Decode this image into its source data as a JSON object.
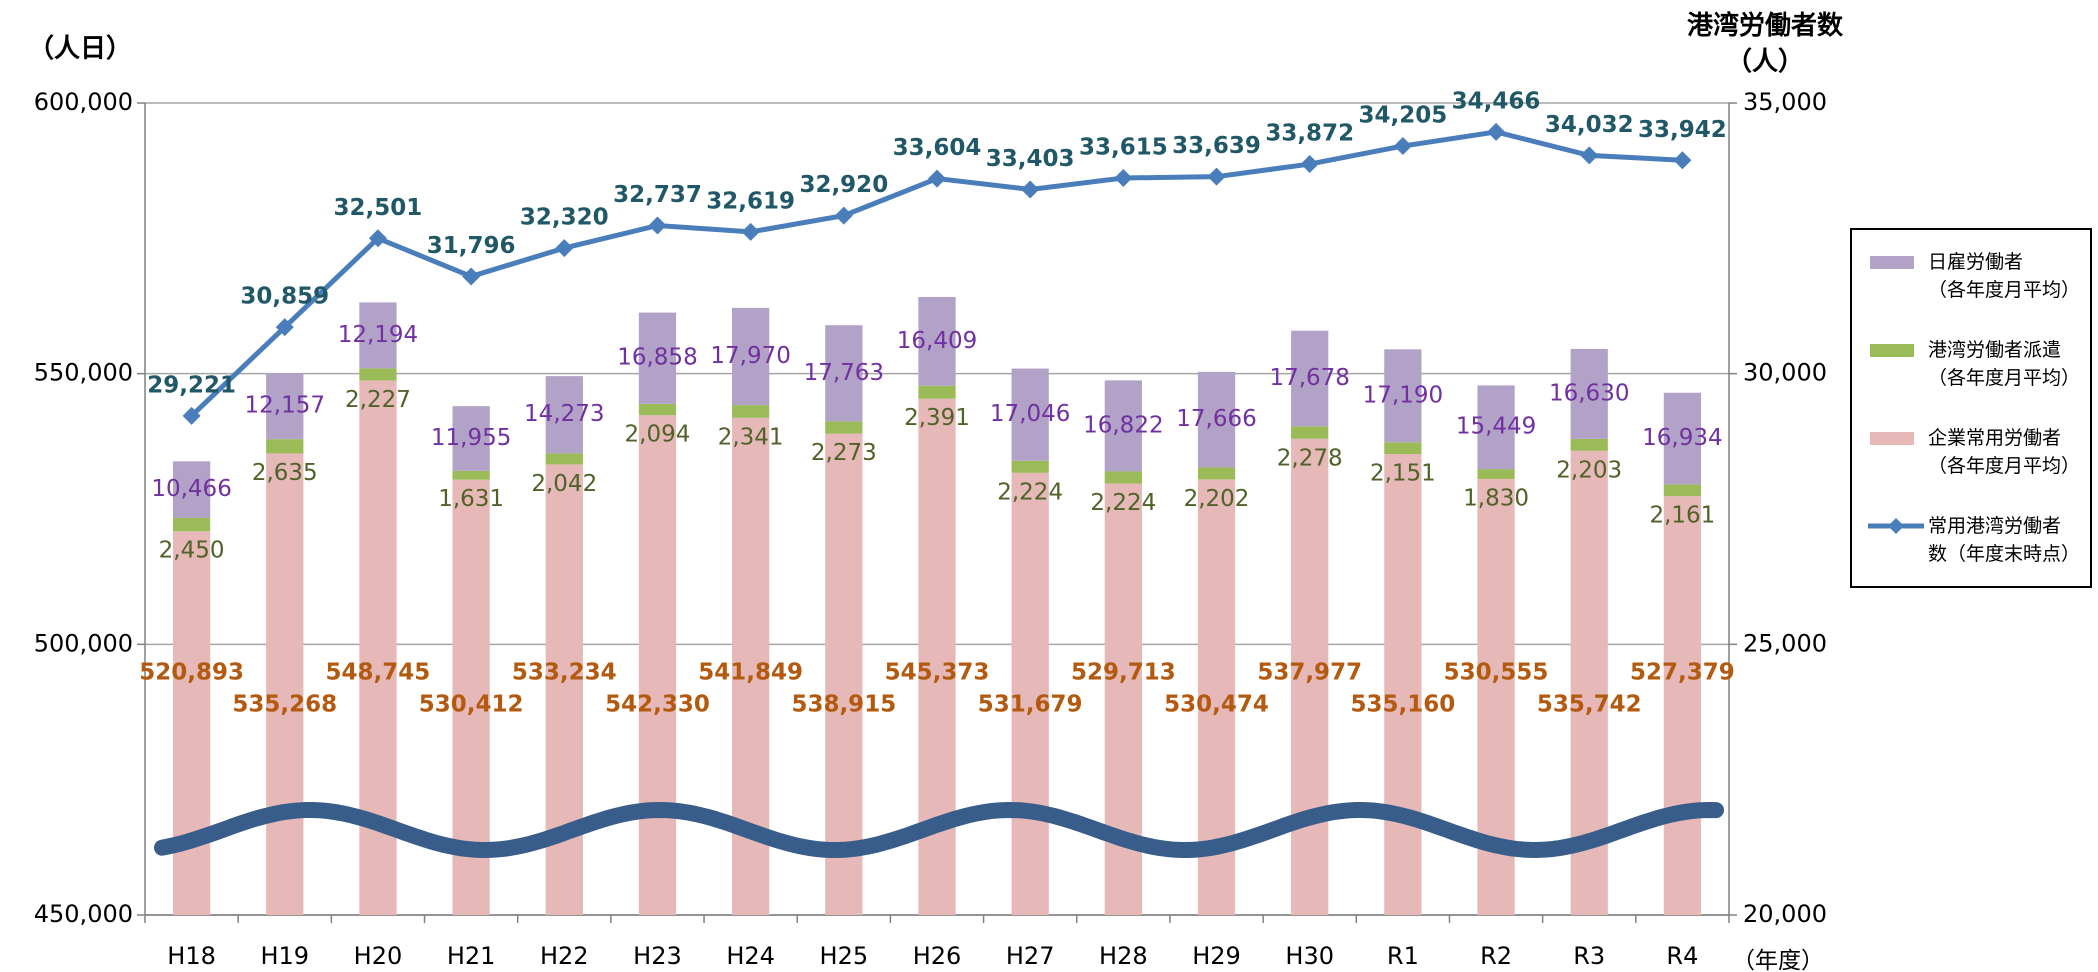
{
  "chart_data": {
    "type": "bar",
    "y_label": "（人日）",
    "y2_label": "港湾労働者数\n（人）",
    "x_label": "（年度）",
    "categories": [
      "H18",
      "H19",
      "H20",
      "H21",
      "H22",
      "H23",
      "H24",
      "H25",
      "H26",
      "H27",
      "H28",
      "H29",
      "H30",
      "R1",
      "R2",
      "R3",
      "R4"
    ],
    "series": [
      {
        "name": "企業常用労働者\n（各年度月平均）",
        "type": "bar",
        "color": "#e6b9b8",
        "label_color": "#b35a10",
        "values": [
          520893,
          535268,
          548745,
          530412,
          533234,
          542330,
          541849,
          538915,
          545373,
          531679,
          529713,
          530474,
          537977,
          535160,
          530555,
          535742,
          527379
        ],
        "value_labels": [
          "520,893",
          "535,268",
          "548,745",
          "530,412",
          "533,234",
          "542,330",
          "541,849",
          "538,915",
          "545,373",
          "531,679",
          "529,713",
          "530,474",
          "537,977",
          "535,160",
          "530,555",
          "535,742",
          "527,379"
        ]
      },
      {
        "name": "港湾労働者派遣\n（各年度月平均）",
        "type": "bar",
        "color": "#9bbb59",
        "label_color": "#4f6228",
        "values": [
          2450,
          2635,
          2227,
          1631,
          2042,
          2094,
          2341,
          2273,
          2391,
          2224,
          2224,
          2202,
          2278,
          2151,
          1830,
          2203,
          2161
        ],
        "value_labels": [
          "2,450",
          "2,635",
          "2,227",
          "1,631",
          "2,042",
          "2,094",
          "2,341",
          "2,273",
          "2,391",
          "2,224",
          "2,224",
          "2,202",
          "2,278",
          "2,151",
          "1,830",
          "2,203",
          "2,161"
        ]
      },
      {
        "name": "日雇労働者\n（各年度月平均）",
        "type": "bar",
        "color": "#b3a2c7",
        "label_color": "#7030a0",
        "values": [
          10466,
          12157,
          12194,
          11955,
          14273,
          16858,
          17970,
          17763,
          16409,
          17046,
          16822,
          17666,
          17678,
          17190,
          15449,
          16630,
          16934
        ],
        "value_labels": [
          "10,466",
          "12,157",
          "12,194",
          "11,955",
          "14,273",
          "16,858",
          "17,970",
          "17,763",
          "16,409",
          "17,046",
          "16,822",
          "17,666",
          "17,678",
          "17,190",
          "15,449",
          "16,630",
          "16,934"
        ]
      },
      {
        "name": "常用港湾労働者\n数（年度末時点）",
        "type": "line",
        "axis": "y2",
        "color": "#4a7ebb",
        "label_color": "#215868",
        "values": [
          29221,
          30859,
          32501,
          31796,
          32320,
          32737,
          32619,
          32920,
          33604,
          33403,
          33615,
          33639,
          33872,
          34205,
          34466,
          34032,
          33942
        ],
        "value_labels": [
          "29,221",
          "30,859",
          "32,501",
          "31,796",
          "32,320",
          "32,737",
          "32,619",
          "32,920",
          "33,604",
          "33,403",
          "33,615",
          "33,639",
          "33,872",
          "34,205",
          "34,466",
          "34,032",
          "33,942"
        ]
      }
    ],
    "ylim": [
      450000,
      600000
    ],
    "yticks": [
      {
        "value": 450000,
        "label": "450,000"
      },
      {
        "value": 500000,
        "label": "500,000"
      },
      {
        "value": 550000,
        "label": "550,000"
      },
      {
        "value": 600000,
        "label": "600,000"
      }
    ],
    "y2lim": [
      20000,
      35000
    ],
    "y2ticks": [
      {
        "value": 20000,
        "label": "20,000"
      },
      {
        "value": 25000,
        "label": "25,000"
      },
      {
        "value": 30000,
        "label": "30,000"
      },
      {
        "value": 35000,
        "label": "35,000"
      }
    ],
    "grid": true,
    "legend": "right"
  }
}
